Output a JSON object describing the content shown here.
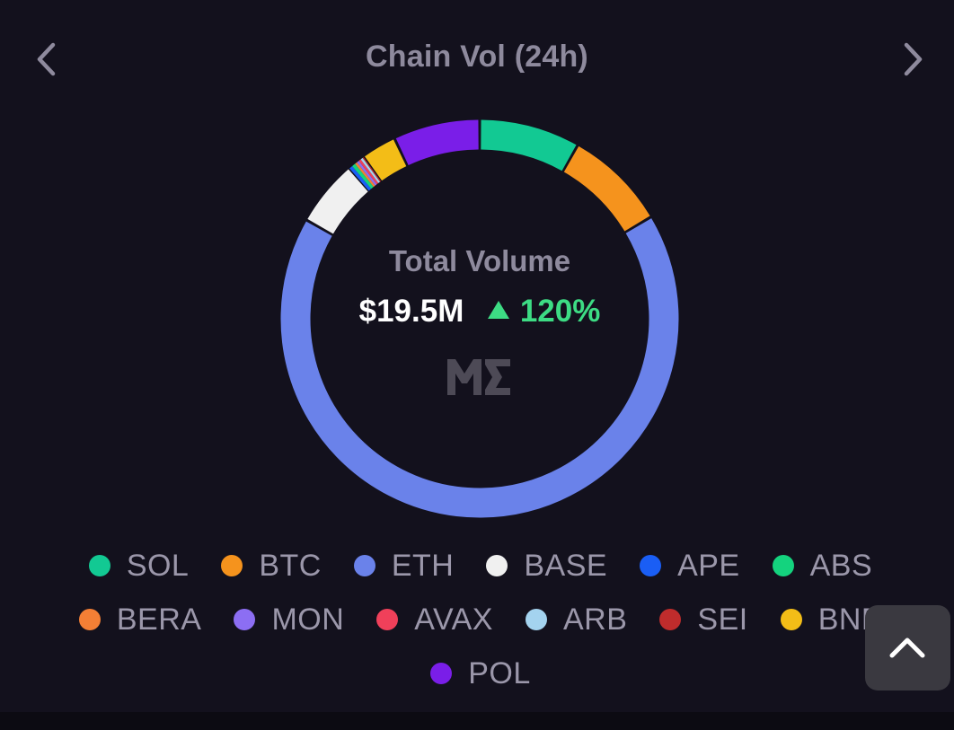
{
  "header": {
    "title": "Chain Vol (24h)",
    "prev_icon": "chevron-left-icon",
    "next_icon": "chevron-right-icon"
  },
  "center": {
    "label": "Total Volume",
    "value": "$19.5M",
    "change": "120%",
    "change_direction": "up",
    "change_color": "#3ddc84",
    "logo": "magic-eden-logo-icon"
  },
  "scroll_top_icon": "chevron-up-icon",
  "chart_data": {
    "type": "pie",
    "variant": "donut",
    "title": "Chain Vol (24h)",
    "categories": [
      "SOL",
      "BTC",
      "ETH",
      "BASE",
      "APE",
      "ABS",
      "BERA",
      "MON",
      "AVAX",
      "ARB",
      "SEI",
      "BNB",
      "POL"
    ],
    "values": [
      8.5,
      8.6,
      69.4,
      5.6,
      0.3,
      0.3,
      0.2,
      0.2,
      0.2,
      0.2,
      0.1,
      3.0,
      7.3
    ],
    "unit": "% of total volume",
    "colors": [
      "#12c993",
      "#f5931d",
      "#6a82ea",
      "#f0f0f0",
      "#1a5ef5",
      "#14d37e",
      "#f47f35",
      "#8c6ef3",
      "#f0405a",
      "#a4d3ef",
      "#bf2c2c",
      "#f3bd17",
      "#7a1ee8"
    ],
    "legend_position": "bottom"
  }
}
